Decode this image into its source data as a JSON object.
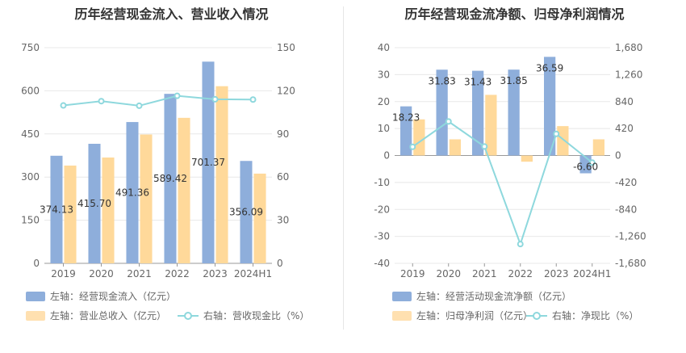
{
  "colors": {
    "blue": "#8eaedb",
    "orange": "#ffd99a",
    "teal": "#8ed8dd"
  },
  "charts": [
    {
      "title": "历年经营现金流入、营业收入情况",
      "legend": {
        "bar1": "左轴：经营现金流入（亿元）",
        "bar2": "左轴：营业总收入（亿元）",
        "line": "右轴：营收现金比（%）"
      }
    },
    {
      "title": "历年经营现金流净额、归母净利润情况",
      "legend": {
        "bar1": "左轴：经营活动现金流净额（亿元）",
        "bar2": "左轴：归母净利润（亿元）",
        "line": "右轴：净现比（%）"
      }
    }
  ],
  "chart_data": [
    {
      "type": "bar",
      "title": "历年经营现金流入、营业收入情况",
      "categories": [
        "2019",
        "2020",
        "2021",
        "2022",
        "2023",
        "2024H1"
      ],
      "left_axis": {
        "ticks": [
          "0",
          "150",
          "300",
          "450",
          "600",
          "750"
        ],
        "ylim": [
          0,
          750
        ]
      },
      "right_axis": {
        "ticks": [
          "0",
          "30",
          "60",
          "90",
          "120",
          "150"
        ],
        "ylim": [
          0,
          150
        ]
      },
      "series": [
        {
          "name": "左轴：经营现金流入（亿元）",
          "axis": "left",
          "values": [
            374.13,
            415.7,
            491.36,
            589.42,
            701.37,
            356.09
          ],
          "labels": [
            "374.13",
            "415.70",
            "491.36",
            "589.42",
            "701.37",
            "356.09"
          ]
        },
        {
          "name": "左轴：营业总收入（亿元）",
          "axis": "left",
          "values": [
            340,
            368,
            448,
            506,
            616,
            312
          ]
        },
        {
          "name": "右轴：营收现金比（%）",
          "axis": "right",
          "type": "line",
          "values": [
            109.8,
            112.8,
            109.6,
            116.5,
            114.1,
            113.9
          ]
        }
      ]
    },
    {
      "type": "bar",
      "title": "历年经营现金流净额、归母净利润情况",
      "categories": [
        "2019",
        "2020",
        "2021",
        "2022",
        "2023",
        "2024H1"
      ],
      "left_axis": {
        "ticks": [
          "-40",
          "-30",
          "-20",
          "-10",
          "0",
          "10",
          "20",
          "30",
          "40"
        ],
        "ylim": [
          -40,
          40
        ]
      },
      "right_axis": {
        "ticks": [
          "-1,680",
          "-1,260",
          "-840",
          "-420",
          "0",
          "420",
          "840",
          "1,260",
          "1,680"
        ],
        "ylim": [
          -1680,
          1680
        ]
      },
      "series": [
        {
          "name": "左轴：经营活动现金流净额（亿元）",
          "axis": "left",
          "values": [
            18.23,
            31.83,
            31.43,
            31.85,
            36.59,
            -6.6
          ],
          "labels": [
            "18.23",
            "31.83",
            "31.43",
            "31.85",
            "36.59",
            "-6.60"
          ]
        },
        {
          "name": "左轴：归母净利润（亿元）",
          "axis": "left",
          "values": [
            13.4,
            6.0,
            22.5,
            -2.3,
            10.9,
            6.0
          ]
        },
        {
          "name": "右轴：净现比（%）",
          "axis": "right",
          "type": "line",
          "values": [
            136,
            530,
            140,
            -1380,
            336,
            -110
          ]
        }
      ]
    }
  ]
}
